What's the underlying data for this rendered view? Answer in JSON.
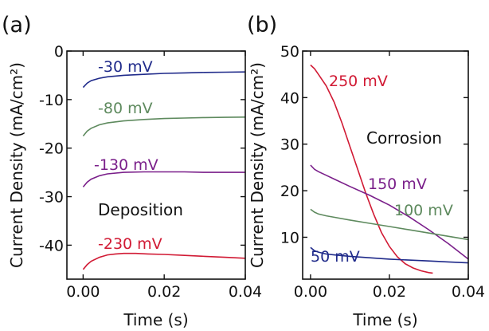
{
  "chart_data": [
    {
      "panel": "(a)",
      "type": "line",
      "xlabel": "Time (s)",
      "ylabel": "Current Density (mA/cm²)",
      "xlim": [
        -0.004,
        0.04
      ],
      "ylim": [
        -47,
        0
      ],
      "x_ticks": [
        0.0,
        0.02,
        0.04
      ],
      "x_tick_labels": [
        "0.00",
        "0.02",
        "0.04"
      ],
      "y_ticks": [
        0,
        -10,
        -20,
        -30,
        -40
      ],
      "y_tick_labels": [
        "0",
        "-10",
        "-20",
        "-30",
        "-40"
      ],
      "annotation": "Deposition",
      "series": [
        {
          "name": "-30 mV",
          "color": "#1f2a8a",
          "x": [
            0,
            0.001,
            0.002,
            0.004,
            0.006,
            0.01,
            0.015,
            0.02,
            0.025,
            0.03,
            0.035,
            0.04
          ],
          "y": [
            -7.5,
            -6.6,
            -6.1,
            -5.6,
            -5.3,
            -5.0,
            -4.8,
            -4.6,
            -4.5,
            -4.4,
            -4.35,
            -4.3
          ]
        },
        {
          "name": "-80 mV",
          "color": "#5e8a5e",
          "x": [
            0,
            0.001,
            0.002,
            0.004,
            0.006,
            0.01,
            0.015,
            0.02,
            0.025,
            0.03,
            0.035,
            0.04
          ],
          "y": [
            -17.5,
            -16.5,
            -15.9,
            -15.2,
            -14.8,
            -14.4,
            -14.1,
            -13.9,
            -13.8,
            -13.7,
            -13.65,
            -13.6
          ]
        },
        {
          "name": "-130 mV",
          "color": "#7a1f8a",
          "x": [
            0,
            0.001,
            0.002,
            0.004,
            0.006,
            0.01,
            0.015,
            0.02,
            0.025,
            0.03,
            0.035,
            0.04
          ],
          "y": [
            -28.0,
            -27.0,
            -26.4,
            -25.7,
            -25.3,
            -25.0,
            -24.9,
            -24.9,
            -24.9,
            -25.0,
            -25.0,
            -25.0
          ]
        },
        {
          "name": "-230 mV",
          "color": "#d11a34",
          "x": [
            0,
            0.001,
            0.002,
            0.004,
            0.006,
            0.008,
            0.01,
            0.013,
            0.016,
            0.02,
            0.025,
            0.03,
            0.035,
            0.04
          ],
          "y": [
            -45.0,
            -44.0,
            -43.3,
            -42.5,
            -42.0,
            -41.8,
            -41.7,
            -41.7,
            -41.8,
            -41.9,
            -42.1,
            -42.3,
            -42.5,
            -42.7
          ]
        }
      ]
    },
    {
      "panel": "(b)",
      "type": "line",
      "xlabel": "Time (s)",
      "ylabel": "Current Density (mA/cm²)",
      "xlim": [
        -0.002,
        0.04
      ],
      "ylim": [
        1,
        50
      ],
      "x_ticks": [
        0.0,
        0.02,
        0.04
      ],
      "x_tick_labels": [
        "0.00",
        "0.02",
        "0.04"
      ],
      "y_ticks": [
        10,
        20,
        30,
        40,
        50
      ],
      "y_tick_labels": [
        "10",
        "20",
        "30",
        "40",
        "50"
      ],
      "annotation": "Corrosion",
      "series": [
        {
          "name": "250 mV",
          "color": "#d11a34",
          "x": [
            0,
            0.001,
            0.002,
            0.004,
            0.006,
            0.008,
            0.01,
            0.012,
            0.014,
            0.016,
            0.018,
            0.02,
            0.022,
            0.024,
            0.026,
            0.028,
            0.03,
            0.031
          ],
          "y": [
            47.0,
            46.2,
            45.0,
            42.5,
            39.0,
            34.5,
            29.5,
            24.5,
            19.5,
            15.0,
            11.0,
            8.0,
            5.8,
            4.3,
            3.4,
            2.8,
            2.4,
            2.3
          ]
        },
        {
          "name": "150 mV",
          "color": "#7a1f8a",
          "x": [
            0,
            0.001,
            0.002,
            0.004,
            0.006,
            0.01,
            0.015,
            0.02,
            0.025,
            0.03,
            0.035,
            0.04
          ],
          "y": [
            25.5,
            24.6,
            24.1,
            23.3,
            22.5,
            20.9,
            19.0,
            16.9,
            14.4,
            11.6,
            8.6,
            5.3
          ]
        },
        {
          "name": "100 mV",
          "color": "#5e8a5e",
          "x": [
            0,
            0.001,
            0.002,
            0.004,
            0.006,
            0.01,
            0.015,
            0.02,
            0.025,
            0.03,
            0.035,
            0.04
          ],
          "y": [
            16.0,
            15.4,
            15.0,
            14.6,
            14.3,
            13.7,
            13.0,
            12.3,
            11.6,
            10.9,
            10.2,
            9.5
          ]
        },
        {
          "name": "50 mV",
          "color": "#1f2a8a",
          "x": [
            0,
            0.001,
            0.002,
            0.004,
            0.006,
            0.01,
            0.015,
            0.02,
            0.025,
            0.03,
            0.035,
            0.04
          ],
          "y": [
            7.8,
            7.1,
            6.8,
            6.4,
            6.2,
            5.9,
            5.6,
            5.3,
            5.1,
            4.9,
            4.7,
            4.5
          ]
        }
      ]
    }
  ]
}
